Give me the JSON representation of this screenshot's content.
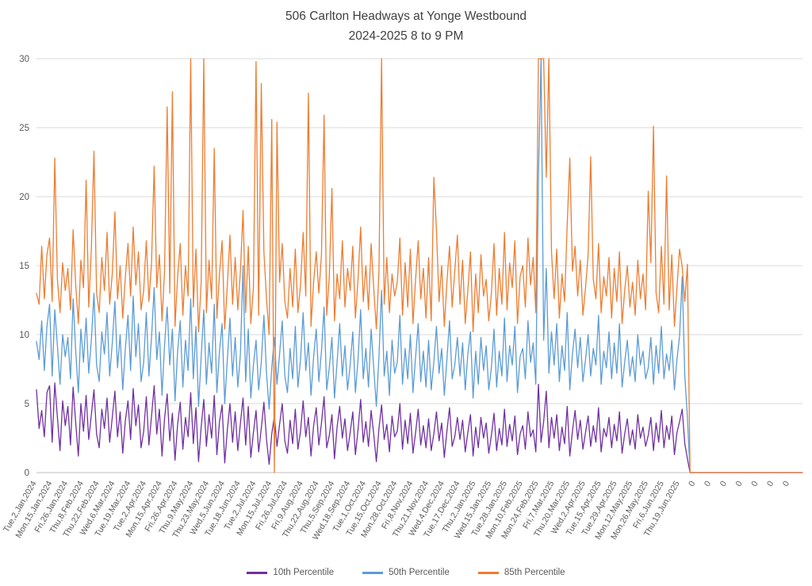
{
  "title": {
    "line1": "506 Carlton Headways at Yonge Westbound",
    "line2": "2024-2025 8 to 9 PM"
  },
  "colors": {
    "background": "#FFFFFF",
    "title_text": "#3F3F3F",
    "axis_text": "#595959",
    "gridline": "#D9D9D9",
    "axis_line": "#BFBFBF",
    "series_10th": "#7030A0",
    "series_50th": "#5B9BD5",
    "series_85th": "#ED7D31"
  },
  "chart_data": {
    "type": "line",
    "title": "506 Carlton Headways at Yonge Westbound 2024-2025 8 to 9 PM",
    "xlabel": "",
    "ylabel": "",
    "ylim": [
      0,
      30
    ],
    "yticks": [
      0,
      5,
      10,
      15,
      20,
      25,
      30
    ],
    "grid": true,
    "legend_position": "bottom",
    "points_per_label": 6,
    "x_labels": [
      "Tue,2,Jan,2024",
      "Mon,15,Jan,2024",
      "Fri,26,Jan,2024",
      "Thu,8,Feb,2024",
      "Thu,22,Feb,2024",
      "Wed,6,Mar,2024",
      "Tue,19,Mar,2024",
      "Tue,2,Apr,2024",
      "Mon,15,Apr,2024",
      "Fri,26,Apr,2024",
      "Thu,9,May,2024",
      "Thu,23,May,2024",
      "Wed,5,Jun,2024",
      "Tue,18,Jun,2024",
      "Tue,2,Jul,2024",
      "Mon,15,Jul,2024",
      "Fri,26,Jul,2024",
      "Fri,9,Aug,2024",
      "Thu,22,Aug,2024",
      "Thu,5,Sep,2024",
      "Wed,18,Sep,2024",
      "Tue,1,Oct,2024",
      "Tue,15,Oct,2024",
      "Mon,28,Oct,2024",
      "Fri,8,Nov,2024",
      "Thu,21,Nov,2024",
      "Wed,4,Dec,2024",
      "Tue,17,Dec,2024",
      "Thu,2,Jan,2025",
      "Wed,15,Jan,2025",
      "Tue,28,Jan,2025",
      "Mon,10,Feb,2025",
      "Mon,24,Feb,2025",
      "Fri,7,Mar,2025",
      "Thu,20,Mar,2025",
      "Wed,2,Apr,2025",
      "Tue,15,Apr,2025",
      "Tue,29,Apr,2025",
      "Mon,12,May,2025",
      "Mon,26,May,2025",
      "Fri,6,Jun,2025",
      "Thu,19,Jun,2025",
      "0",
      "0",
      "0",
      "0",
      "0",
      "0",
      "0"
    ],
    "series": [
      {
        "name": "10th Percentile",
        "color": "#7030A0",
        "values": [
          6,
          3.2,
          4.5,
          2.6,
          5.8,
          6.3,
          2.2,
          6.5,
          4,
          1.6,
          5.2,
          3.4,
          4.8,
          2,
          6.2,
          3.6,
          1.2,
          5,
          3,
          5.6,
          2.4,
          4.2,
          6,
          2.8,
          1.8,
          4.6,
          3.2,
          5.4,
          2.2,
          4,
          5.9,
          2.6,
          4.4,
          1.4,
          3.8,
          5.2,
          2.4,
          6.1,
          3.4,
          4.9,
          1.8,
          3,
          5.5,
          2,
          4.1,
          6.3,
          2.8,
          4.6,
          1.2,
          3.9,
          5.7,
          2.3,
          4.3,
          0.9,
          3.5,
          5.1,
          1.7,
          4,
          2.6,
          5.8,
          2.1,
          4.7,
          0.8,
          3.3,
          5.3,
          1.9,
          4.2,
          2.5,
          5.6,
          1.3,
          3.7,
          4.9,
          0.7,
          3.1,
          5,
          2.2,
          4.4,
          1.6,
          3.6,
          5.4,
          2,
          4.8,
          1.1,
          2.9,
          4.5,
          1.5,
          3.2,
          5.1,
          2.4,
          0.6,
          2.8,
          4.1,
          1.9,
          3.5,
          5,
          2.3,
          1.4,
          3.8,
          2.1,
          4.6,
          1.7,
          3,
          5.2,
          2.6,
          4,
          1.2,
          3.4,
          4.7,
          2,
          3.6,
          5.5,
          1.8,
          2.7,
          4.2,
          1,
          3.3,
          4.8,
          2.5,
          3.9,
          1.6,
          2.9,
          4.4,
          1.3,
          3.1,
          5.3,
          2.2,
          3.7,
          1.9,
          4.5,
          2.8,
          0.8,
          3.2,
          4.9,
          2.4,
          3.5,
          1.5,
          4.1,
          2.6,
          3,
          5,
          1.7,
          3.8,
          2.1,
          4.3,
          1.4,
          2.9,
          4.6,
          2,
          3.4,
          1.8,
          3.9,
          1.6,
          2.8,
          4.4,
          2.3,
          3.6,
          1.1,
          3,
          4.7,
          1.9,
          2.6,
          4,
          2.4,
          3.8,
          1.5,
          2.9,
          4.2,
          1.2,
          3.3,
          1.8,
          4,
          2.5,
          3.6,
          1.4,
          2.7,
          4.3,
          1.6,
          3.2,
          2,
          4.6,
          1.9,
          3.5,
          2.3,
          4.1,
          1.3,
          2.8,
          3.4,
          1.7,
          4.4,
          2.6,
          3.1,
          1.5,
          6.4,
          2.2,
          3.7,
          5.9,
          1.8,
          4,
          2.5,
          4.2,
          1.6,
          3.3,
          2.1,
          4.8,
          1.2,
          3,
          4.5,
          2.4,
          3.8,
          1.7,
          2.9,
          4.1,
          1.9,
          3.4,
          2.2,
          4.7,
          1.5,
          3.2,
          2.6,
          4,
          1.8,
          3.5,
          2.3,
          4.4,
          1.4,
          2.8,
          3.9,
          2,
          3.1,
          1.7,
          4.2,
          2.5,
          3.3,
          1.9,
          2.7,
          4,
          1.6,
          3.6,
          2.2,
          4.5,
          1.8,
          3.4,
          2.4,
          4.1,
          1.3,
          2.9,
          3.7,
          4.6,
          2.1,
          1,
          0,
          0,
          0,
          0,
          0,
          0,
          0,
          0,
          0,
          0,
          0,
          0,
          0,
          0,
          0,
          0,
          0,
          0,
          0,
          0,
          0,
          0,
          0,
          0,
          0,
          0,
          0,
          0,
          0,
          0,
          0,
          0,
          0,
          0,
          0,
          0,
          0,
          0,
          0,
          0,
          0,
          0,
          0,
          0
        ]
      },
      {
        "name": "50th Percentile",
        "color": "#5B9BD5",
        "values": [
          9.5,
          8.2,
          11,
          7.4,
          10.6,
          12.2,
          7,
          11.8,
          9.2,
          6.4,
          10,
          8.4,
          9.8,
          6.8,
          12.6,
          8.8,
          5.8,
          10.4,
          8,
          11.2,
          7.2,
          9.6,
          13,
          7.8,
          6.6,
          10.2,
          8.6,
          11.6,
          7,
          9.4,
          12.4,
          7.6,
          10,
          6,
          9,
          11.4,
          7.4,
          12.8,
          8.4,
          10.8,
          6.6,
          8,
          11.6,
          7,
          9.8,
          13.4,
          8.2,
          10.2,
          5.6,
          9.2,
          12,
          7.8,
          10.4,
          5.2,
          8.8,
          11,
          6.2,
          9.6,
          7.4,
          12.6,
          6.8,
          10.6,
          4.8,
          8.4,
          11.8,
          6.4,
          9.4,
          7.2,
          12.2,
          5.8,
          8.8,
          10.8,
          5,
          8.2,
          11.2,
          7,
          9.8,
          6.2,
          8.6,
          15,
          6.6,
          10.4,
          5.4,
          7.8,
          9.6,
          6,
          8,
          11.4,
          7.2,
          4.6,
          7.6,
          9.8,
          6.4,
          8.6,
          11,
          7,
          5.8,
          9,
          6.8,
          10.6,
          6.2,
          8.2,
          11.6,
          7.4,
          9.4,
          5.6,
          8.4,
          10.4,
          6.6,
          8.8,
          12,
          6,
          7.6,
          9.8,
          5.4,
          8,
          10.8,
          7,
          9.2,
          6,
          7.8,
          10.2,
          5.8,
          8.2,
          11.8,
          6.8,
          9,
          6.2,
          10.4,
          7.6,
          4.8,
          8.4,
          13.2,
          7,
          8.8,
          5.6,
          9.6,
          7.2,
          8,
          11.4,
          6.4,
          9,
          6.8,
          10,
          5.8,
          8.4,
          10.8,
          6.6,
          8.8,
          6.2,
          9.6,
          6,
          8,
          10.6,
          7.2,
          9,
          5.6,
          8.2,
          11,
          6.8,
          7.8,
          9.8,
          7,
          9.4,
          6,
          8.6,
          10.2,
          5.4,
          8.8,
          6.4,
          9.8,
          7.4,
          9.2,
          6,
          7.6,
          10.4,
          6.2,
          8.8,
          7,
          11.2,
          6.6,
          9.2,
          7.8,
          10.6,
          5.8,
          8.4,
          9,
          6.8,
          11,
          8,
          9.4,
          6.4,
          21.4,
          30,
          9.6,
          14.8,
          7.2,
          10.2,
          7.8,
          10.8,
          6.6,
          9.2,
          7.4,
          11.6,
          6,
          8.6,
          10.4,
          7.6,
          9.8,
          6.6,
          8.2,
          10,
          7,
          9,
          7.8,
          11.4,
          6.4,
          8.8,
          7.6,
          10.2,
          6.8,
          9.4,
          7.2,
          10.8,
          6.2,
          8,
          9.6,
          7,
          8.4,
          6.6,
          10,
          7.8,
          8.8,
          6.8,
          7.6,
          9.8,
          6.4,
          9.2,
          7.2,
          10.6,
          6.8,
          8.6,
          7.4,
          9.6,
          6,
          8.2,
          9.9,
          14.2,
          7,
          4,
          0,
          0,
          0,
          0,
          0,
          0,
          0,
          0,
          0,
          0,
          0,
          0,
          0,
          0,
          0,
          0,
          0,
          0,
          0,
          0,
          0,
          0,
          0,
          0,
          0,
          0,
          0,
          0,
          0,
          0,
          0,
          0,
          0,
          0,
          0,
          0,
          0,
          0,
          0,
          0,
          0,
          0,
          0,
          0
        ]
      },
      {
        "name": "85th Percentile",
        "color": "#ED7D31",
        "values": [
          13,
          12.2,
          16.4,
          12.6,
          15.8,
          17,
          12.4,
          22.8,
          14,
          11.6,
          15.2,
          13.2,
          14.8,
          11.8,
          17.6,
          13.6,
          10.8,
          15.4,
          13.4,
          21.2,
          12,
          16.2,
          23.3,
          13,
          11.6,
          15.6,
          13.2,
          17.4,
          12.2,
          14.4,
          18.9,
          12.6,
          15,
          11.2,
          14.2,
          16.6,
          12.8,
          17.8,
          13.6,
          16,
          11.8,
          13.2,
          16.8,
          12.4,
          15.2,
          22.2,
          13.4,
          15.8,
          11,
          14.6,
          26.5,
          13,
          27.6,
          10.6,
          14.2,
          16.6,
          11.4,
          15,
          12.8,
          30,
          12,
          16.2,
          10.2,
          13.8,
          30,
          11.6,
          15.4,
          12.6,
          23.5,
          11.2,
          14.4,
          16.8,
          10.4,
          13.6,
          17.2,
          12.2,
          15.6,
          11.8,
          14.6,
          19,
          11.6,
          16.4,
          10.8,
          13.4,
          29.8,
          11.4,
          28.2,
          16,
          12.6,
          10,
          25.6,
          0,
          25.4,
          13.8,
          16.6,
          12.4,
          11.2,
          14.8,
          12,
          16.2,
          11.6,
          13.6,
          17.4,
          12.8,
          27.5,
          10.6,
          13.8,
          16,
          13,
          15.8,
          25.9,
          11.4,
          14.2,
          20.6,
          11,
          14.4,
          12.6,
          16.8,
          12,
          14.8,
          13.2,
          16.4,
          11.2,
          14,
          17.8,
          12.4,
          15,
          11.8,
          16.6,
          13.4,
          10.4,
          14.6,
          30,
          12.2,
          15.6,
          11.6,
          14.4,
          12.8,
          13.8,
          17,
          11.4,
          15.2,
          12,
          16.2,
          10.8,
          14,
          16.8,
          12.6,
          14.8,
          11.2,
          15.6,
          11,
          21.4,
          17.6,
          12.4,
          15,
          10.6,
          13.8,
          16.4,
          12,
          14.6,
          17.2,
          12.2,
          15.4,
          10.8,
          13.2,
          16,
          10.2,
          14.4,
          11.6,
          15.8,
          12.8,
          14,
          11,
          13,
          16.6,
          11.4,
          14.8,
          12.2,
          17.4,
          11.8,
          15.2,
          13.4,
          16.8,
          10.8,
          14.2,
          15,
          12,
          17,
          13.6,
          15.6,
          11.6,
          30,
          30,
          30,
          21.4,
          30,
          16,
          12.6,
          16.2,
          11.2,
          14.4,
          12.4,
          18,
          22.8,
          14.6,
          16.4,
          12.8,
          15.4,
          11.4,
          13.4,
          15.8,
          22.9,
          14,
          12.6,
          16.6,
          11.6,
          14.2,
          12.8,
          15.6,
          11.2,
          14.8,
          12.4,
          16,
          10.8,
          13.2,
          15,
          12,
          13.8,
          11.4,
          15.4,
          12.6,
          14.4,
          11.8,
          20.4,
          15.2,
          25.1,
          13,
          11.6,
          16.4,
          12.2,
          21.5,
          11.8,
          15.8,
          10.6,
          13.4,
          16.2,
          14.9,
          12.4,
          15.1,
          0,
          0,
          0,
          0,
          0,
          0,
          0,
          0,
          0,
          0,
          0,
          0,
          0,
          0,
          0,
          0,
          0,
          0,
          0,
          0,
          0,
          0,
          0,
          0,
          0,
          0,
          0,
          0,
          0,
          0,
          0,
          0,
          0,
          0,
          0,
          0,
          0,
          0,
          0,
          0,
          0,
          0,
          0,
          0
        ]
      }
    ]
  }
}
